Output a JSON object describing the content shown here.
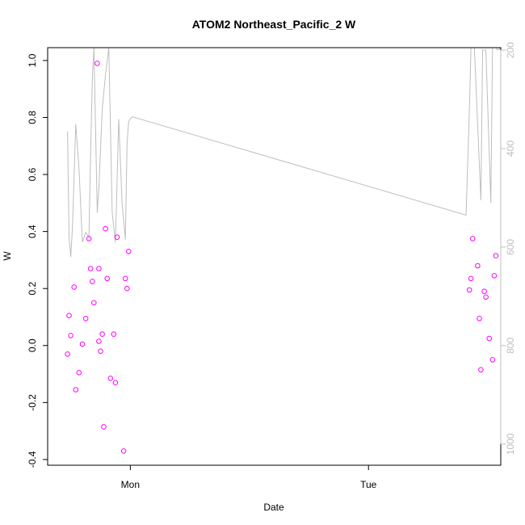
{
  "chart_data": {
    "type": "scatter",
    "title": "ATOM2 Northeast_Pacific_2 W",
    "xlabel": "Date",
    "ylabel": "W",
    "colors": {
      "points": "#ff00ff",
      "depth_line": "#bebebe",
      "axis": "#000000",
      "right_axis": "#bebebe"
    },
    "x_unit": "hours since Sunday 00:00",
    "xlim": [
      15.67,
      61.33
    ],
    "x_ticks": [
      {
        "label": "Mon",
        "value": 24
      },
      {
        "label": "Tue",
        "value": 48
      }
    ],
    "ylim": [
      -0.42,
      1.045
    ],
    "y_ticks": [
      {
        "label": "-0.4",
        "value": -0.4
      },
      {
        "label": "-0.2",
        "value": -0.2
      },
      {
        "label": "0.0",
        "value": 0.0
      },
      {
        "label": "0.2",
        "value": 0.2
      },
      {
        "label": "0.4",
        "value": 0.4
      },
      {
        "label": "0.6",
        "value": 0.6
      },
      {
        "label": "0.8",
        "value": 0.8
      },
      {
        "label": "1.0",
        "value": 1.0
      }
    ],
    "y2lim": [
      1043,
      195
    ],
    "y2_ticks": [
      {
        "label": "200",
        "value": 200
      },
      {
        "label": "400",
        "value": 400
      },
      {
        "label": "600",
        "value": 600
      },
      {
        "label": "800",
        "value": 800
      },
      {
        "label": "1000",
        "value": 1000
      }
    ],
    "series": [
      {
        "kind": "points",
        "points": [
          [
            17.67,
            -0.03
          ],
          [
            17.83,
            0.105
          ],
          [
            18.0,
            0.035
          ],
          [
            18.33,
            0.205
          ],
          [
            18.5,
            -0.155
          ],
          [
            18.83,
            -0.095
          ],
          [
            19.17,
            0.005
          ],
          [
            19.5,
            0.095
          ],
          [
            19.83,
            0.375
          ],
          [
            20.0,
            0.27
          ],
          [
            20.17,
            0.225
          ],
          [
            20.33,
            0.15
          ],
          [
            20.67,
            0.99
          ],
          [
            20.83,
            0.27
          ],
          [
            21.0,
            -0.02
          ],
          [
            21.17,
            0.04
          ],
          [
            21.33,
            -0.285
          ],
          [
            21.5,
            0.41
          ],
          [
            21.67,
            0.235
          ],
          [
            22.0,
            -0.115
          ],
          [
            22.33,
            0.04
          ],
          [
            22.5,
            -0.13
          ],
          [
            22.67,
            0.38
          ],
          [
            23.33,
            -0.37
          ],
          [
            23.5,
            0.235
          ],
          [
            23.67,
            0.2
          ],
          [
            23.83,
            0.33
          ],
          [
            20.83,
            0.015
          ],
          [
            58.17,
            0.195
          ],
          [
            58.33,
            0.235
          ],
          [
            58.5,
            0.375
          ],
          [
            59.0,
            0.28
          ],
          [
            59.17,
            0.095
          ],
          [
            59.33,
            -0.085
          ],
          [
            59.67,
            0.19
          ],
          [
            59.83,
            0.17
          ],
          [
            60.17,
            0.025
          ],
          [
            60.5,
            -0.05
          ],
          [
            60.67,
            0.245
          ],
          [
            60.83,
            0.315
          ]
        ]
      },
      {
        "kind": "depth_line",
        "axis": "right",
        "points": [
          [
            17.67,
            365
          ],
          [
            17.83,
            580
          ],
          [
            18.0,
            620
          ],
          [
            18.17,
            560
          ],
          [
            18.5,
            350
          ],
          [
            18.83,
            440
          ],
          [
            19.17,
            590
          ],
          [
            19.5,
            570
          ],
          [
            19.83,
            580
          ],
          [
            20.0,
            410
          ],
          [
            20.17,
            260
          ],
          [
            20.33,
            195
          ],
          [
            20.67,
            530
          ],
          [
            20.83,
            480
          ],
          [
            21.17,
            320
          ],
          [
            21.5,
            250
          ],
          [
            21.83,
            195
          ],
          [
            22.17,
            530
          ],
          [
            22.5,
            590
          ],
          [
            22.83,
            340
          ],
          [
            23.17,
            510
          ],
          [
            23.5,
            585
          ],
          [
            23.67,
            390
          ],
          [
            23.83,
            345
          ],
          [
            24.17,
            335
          ],
          [
            57.83,
            535
          ],
          [
            58.17,
            320
          ],
          [
            58.33,
            195
          ],
          [
            58.67,
            195
          ],
          [
            59.33,
            505
          ],
          [
            59.5,
            200
          ],
          [
            59.83,
            200
          ],
          [
            60.33,
            510
          ],
          [
            60.5,
            195
          ],
          [
            60.83,
            195
          ],
          [
            61.0,
            200
          ],
          [
            61.33,
            195
          ]
        ]
      }
    ]
  }
}
